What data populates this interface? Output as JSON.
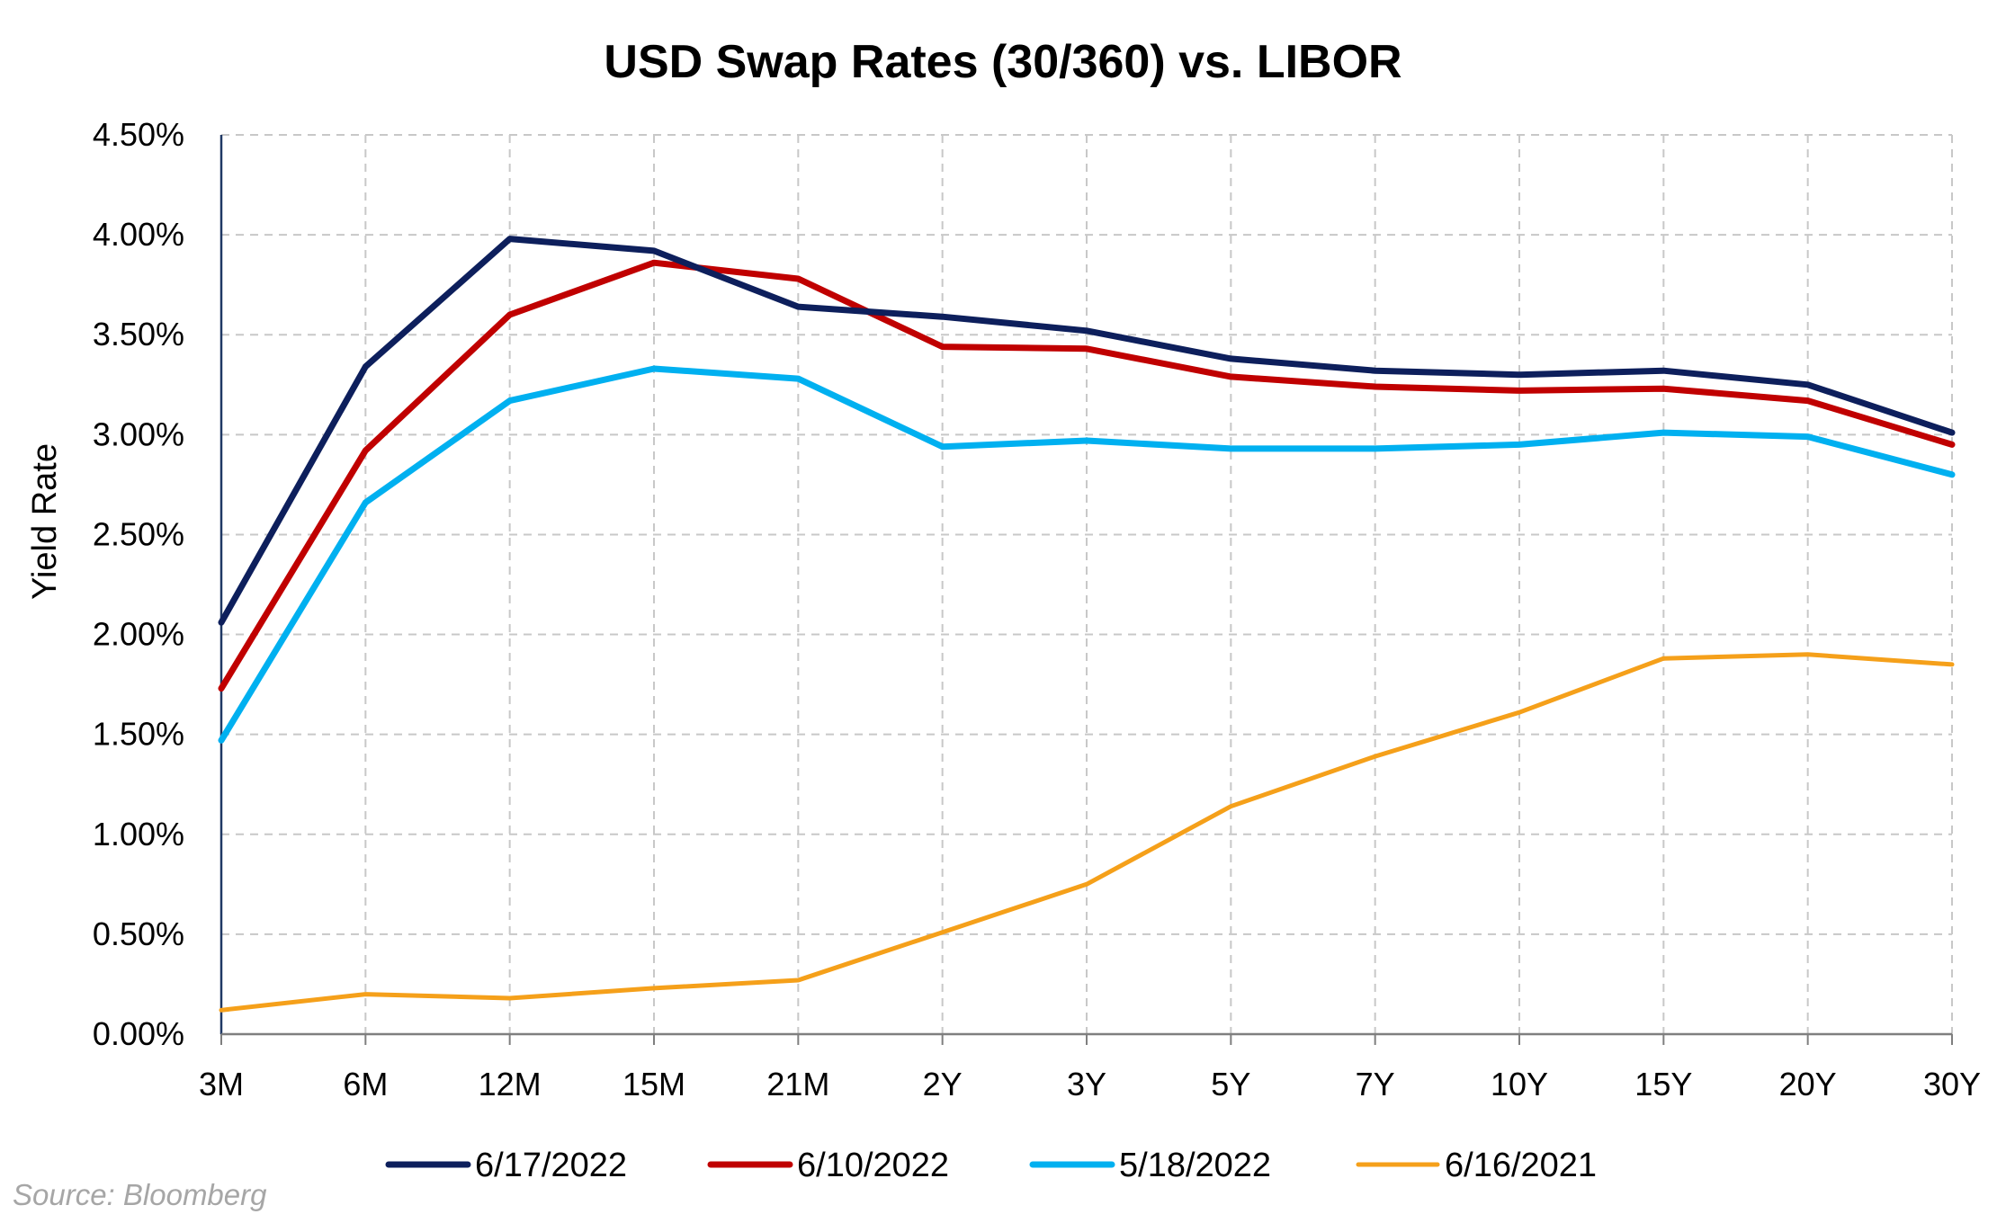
{
  "chart_data": {
    "type": "line",
    "title": "USD Swap Rates (30/360) vs. LIBOR",
    "ylabel": "Yield Rate",
    "xlabel": "",
    "categories": [
      "3M",
      "6M",
      "12M",
      "15M",
      "21M",
      "2Y",
      "3Y",
      "5Y",
      "7Y",
      "10Y",
      "15Y",
      "20Y",
      "30Y"
    ],
    "ylim": [
      0,
      4.5
    ],
    "yticks": [
      "0.00%",
      "0.50%",
      "1.00%",
      "1.50%",
      "2.00%",
      "2.50%",
      "3.00%",
      "3.50%",
      "4.00%",
      "4.50%"
    ],
    "grid": true,
    "legend_position": "bottom",
    "series": [
      {
        "name": "6/17/2022",
        "color": "#0d1f5c",
        "values": [
          2.06,
          3.34,
          3.98,
          3.92,
          3.64,
          3.59,
          3.52,
          3.38,
          3.32,
          3.3,
          3.32,
          3.25,
          3.01
        ]
      },
      {
        "name": "6/10/2022",
        "color": "#c00000",
        "values": [
          1.73,
          2.92,
          3.6,
          3.86,
          3.78,
          3.44,
          3.43,
          3.29,
          3.24,
          3.22,
          3.23,
          3.17,
          2.95
        ]
      },
      {
        "name": "5/18/2022",
        "color": "#00b0f0",
        "values": [
          1.47,
          2.66,
          3.17,
          3.33,
          3.28,
          2.94,
          2.97,
          2.93,
          2.93,
          2.95,
          3.01,
          2.99,
          2.8
        ]
      },
      {
        "name": "6/16/2021",
        "color": "#f5a01a",
        "values": [
          0.12,
          0.2,
          0.18,
          0.23,
          0.27,
          0.51,
          0.75,
          1.14,
          1.39,
          1.61,
          1.88,
          1.9,
          1.85
        ]
      }
    ],
    "source": "Source: Bloomberg"
  }
}
